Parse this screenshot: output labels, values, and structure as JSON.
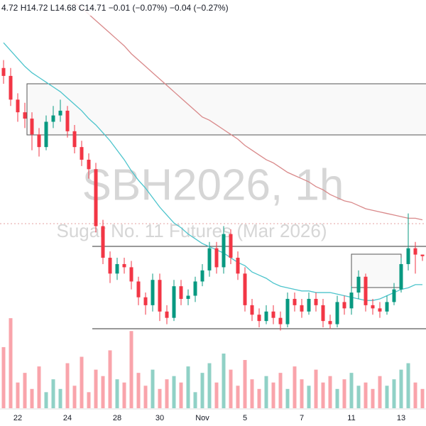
{
  "chart_data": {
    "type": "candlestick",
    "header": "4.72  H14.72  L14.68  C14.71  −0.01 (−0.07%)  −0.04 (−0.27%)",
    "watermark_title": "SBH2026, 1h",
    "watermark_subtitle": "Sugar No. 11 Futures (Mar 2026)",
    "categories": [
      null,
      null,
      "22",
      null,
      null,
      null,
      null,
      null,
      null,
      "24",
      null,
      null,
      null,
      null,
      null,
      null,
      "28",
      null,
      null,
      null,
      null,
      null,
      "30",
      null,
      null,
      null,
      null,
      null,
      "Nov",
      null,
      null,
      null,
      null,
      null,
      "5",
      null,
      null,
      null,
      null,
      null,
      null,
      null,
      "7",
      null,
      null,
      null,
      null,
      null,
      null,
      "11",
      null,
      null,
      null,
      null,
      null,
      null,
      "13",
      null,
      null,
      null
    ],
    "open": [
      15.9,
      15.85,
      15.7,
      15.62,
      15.58,
      15.48,
      15.4,
      15.56,
      15.6,
      15.63,
      15.5,
      15.4,
      15.32,
      15.26,
      14.9,
      14.7,
      14.6,
      14.66,
      14.64,
      14.55,
      14.45,
      14.4,
      14.56,
      14.36,
      14.32,
      14.52,
      14.44,
      14.46,
      14.55,
      14.62,
      14.76,
      14.64,
      14.85,
      14.7,
      14.6,
      14.4,
      14.34,
      14.3,
      14.36,
      14.32,
      14.28,
      14.44,
      14.4,
      14.36,
      14.44,
      14.4,
      14.3,
      14.28,
      14.42,
      14.38,
      14.48,
      14.58,
      14.4,
      14.38,
      14.36,
      14.42,
      14.5,
      14.66,
      14.76,
      14.72
    ],
    "high": [
      15.95,
      15.9,
      15.74,
      15.68,
      15.62,
      15.52,
      15.6,
      15.66,
      15.7,
      15.66,
      15.54,
      15.44,
      15.36,
      15.3,
      14.94,
      14.74,
      14.7,
      14.7,
      14.68,
      14.58,
      14.48,
      14.6,
      14.6,
      14.4,
      14.56,
      14.56,
      14.5,
      14.58,
      14.66,
      14.8,
      14.8,
      14.9,
      14.88,
      14.74,
      14.64,
      14.44,
      14.38,
      14.4,
      14.4,
      14.36,
      14.48,
      14.48,
      14.44,
      14.48,
      14.48,
      14.44,
      14.34,
      14.46,
      14.46,
      14.52,
      14.62,
      14.6,
      14.44,
      14.42,
      14.46,
      14.54,
      14.7,
      14.98,
      14.8,
      14.72
    ],
    "low": [
      15.8,
      15.66,
      15.56,
      15.52,
      15.38,
      15.34,
      15.38,
      15.52,
      15.56,
      15.46,
      15.36,
      15.28,
      15.2,
      14.86,
      14.66,
      14.54,
      14.56,
      14.6,
      14.5,
      14.4,
      14.34,
      14.36,
      14.3,
      14.28,
      14.3,
      14.4,
      14.4,
      14.42,
      14.52,
      14.58,
      14.6,
      14.6,
      14.66,
      14.56,
      14.36,
      14.3,
      14.26,
      14.28,
      14.28,
      14.24,
      14.26,
      14.36,
      14.32,
      14.34,
      14.36,
      14.26,
      14.25,
      14.26,
      14.34,
      14.34,
      14.44,
      14.36,
      14.34,
      14.32,
      14.34,
      14.4,
      14.48,
      14.62,
      14.6,
      14.68
    ],
    "close": [
      15.85,
      15.7,
      15.62,
      15.58,
      15.48,
      15.4,
      15.56,
      15.6,
      15.63,
      15.5,
      15.4,
      15.32,
      15.26,
      14.9,
      14.7,
      14.6,
      14.66,
      14.64,
      14.55,
      14.45,
      14.4,
      14.56,
      14.36,
      14.32,
      14.52,
      14.44,
      14.46,
      14.55,
      14.62,
      14.76,
      14.64,
      14.85,
      14.7,
      14.6,
      14.4,
      14.34,
      14.3,
      14.36,
      14.32,
      14.28,
      14.44,
      14.4,
      14.36,
      14.44,
      14.4,
      14.3,
      14.28,
      14.42,
      14.38,
      14.48,
      14.58,
      14.4,
      14.38,
      14.36,
      14.42,
      14.5,
      14.66,
      14.76,
      14.72,
      14.71
    ],
    "volume": [
      95,
      140,
      40,
      55,
      30,
      65,
      25,
      45,
      30,
      70,
      35,
      80,
      25,
      60,
      50,
      90,
      45,
      40,
      120,
      55,
      35,
      60,
      30,
      45,
      50,
      40,
      65,
      25,
      55,
      70,
      40,
      85,
      60,
      35,
      75,
      45,
      30,
      50,
      40,
      55,
      30,
      65,
      45,
      35,
      60,
      40,
      50,
      30,
      45,
      55,
      35,
      40,
      30,
      50,
      35,
      45,
      60,
      70,
      40,
      30
    ],
    "vlim": [
      0,
      160
    ],
    "ylim": [
      14.13,
      16.33
    ],
    "up_color": "#089981",
    "down_color": "#f23645",
    "moving_averages": [
      {
        "color": "#4cc4cc",
        "values": [
          16.06,
          16.01,
          15.96,
          15.91,
          15.87,
          15.84,
          15.81,
          15.78,
          15.75,
          15.71,
          15.67,
          15.63,
          15.58,
          15.54,
          15.49,
          15.44,
          15.38,
          15.32,
          15.25,
          15.19,
          15.14,
          15.08,
          15.02,
          14.97,
          14.92,
          14.89,
          14.85,
          14.82,
          14.79,
          14.77,
          14.75,
          14.73,
          14.7,
          14.67,
          14.65,
          14.61,
          14.59,
          14.57,
          14.54,
          14.52,
          14.51,
          14.5,
          14.49,
          14.49,
          14.48,
          14.48,
          14.48,
          14.47,
          14.46,
          14.45,
          14.44,
          14.43,
          14.43,
          14.44,
          14.46,
          14.48,
          14.5,
          14.51,
          14.53,
          14.53
        ]
      },
      {
        "color": "#d9898a",
        "values": [
          null,
          null,
          null,
          null,
          null,
          null,
          null,
          null,
          null,
          null,
          16.31,
          16.28,
          16.24,
          16.2,
          16.16,
          16.12,
          16.08,
          16.04,
          15.99,
          15.95,
          15.91,
          15.87,
          15.83,
          15.79,
          15.75,
          15.71,
          15.67,
          15.63,
          15.59,
          15.57,
          15.54,
          15.51,
          15.48,
          15.45,
          15.41,
          15.38,
          15.35,
          15.32,
          15.3,
          15.27,
          15.24,
          15.22,
          15.2,
          15.18,
          15.15,
          15.13,
          15.1,
          15.08,
          15.06,
          15.05,
          15.03,
          15.01,
          15.0,
          14.99,
          14.98,
          14.97,
          14.96,
          14.95,
          14.95,
          14.94
        ]
      }
    ]
  }
}
